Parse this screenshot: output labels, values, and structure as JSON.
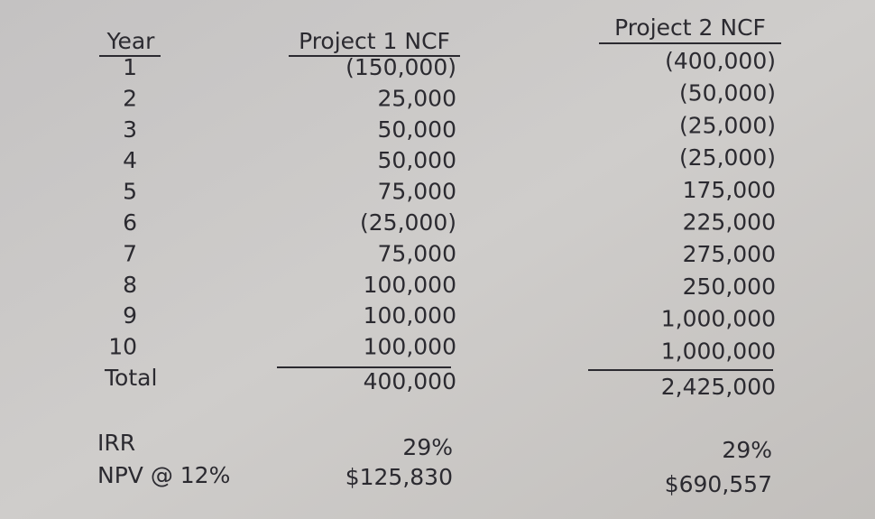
{
  "table": {
    "headers": [
      "Year",
      "Project 1 NCF",
      "Project 2 NCF"
    ],
    "rows": [
      [
        "1",
        "(150,000)",
        "(400,000)"
      ],
      [
        "2",
        "25,000",
        "(50,000)"
      ],
      [
        "3",
        "50,000",
        "(25,000)"
      ],
      [
        "4",
        "50,000",
        "(25,000)"
      ],
      [
        "5",
        "75,000",
        "175,000"
      ],
      [
        "6",
        "(25,000)",
        "225,000"
      ],
      [
        "7",
        "75,000",
        "275,000"
      ],
      [
        "8",
        "100,000",
        "250,000"
      ],
      [
        "9",
        "100,000",
        "1,000,000"
      ],
      [
        "10",
        "100,000",
        "1,000,000"
      ],
      [
        "Total",
        "400,000",
        "2,425,000"
      ]
    ]
  },
  "summary": [
    [
      "IRR",
      "29%",
      "29%"
    ],
    [
      "NPV @ 12%",
      "$125,830",
      "$690,557"
    ]
  ]
}
